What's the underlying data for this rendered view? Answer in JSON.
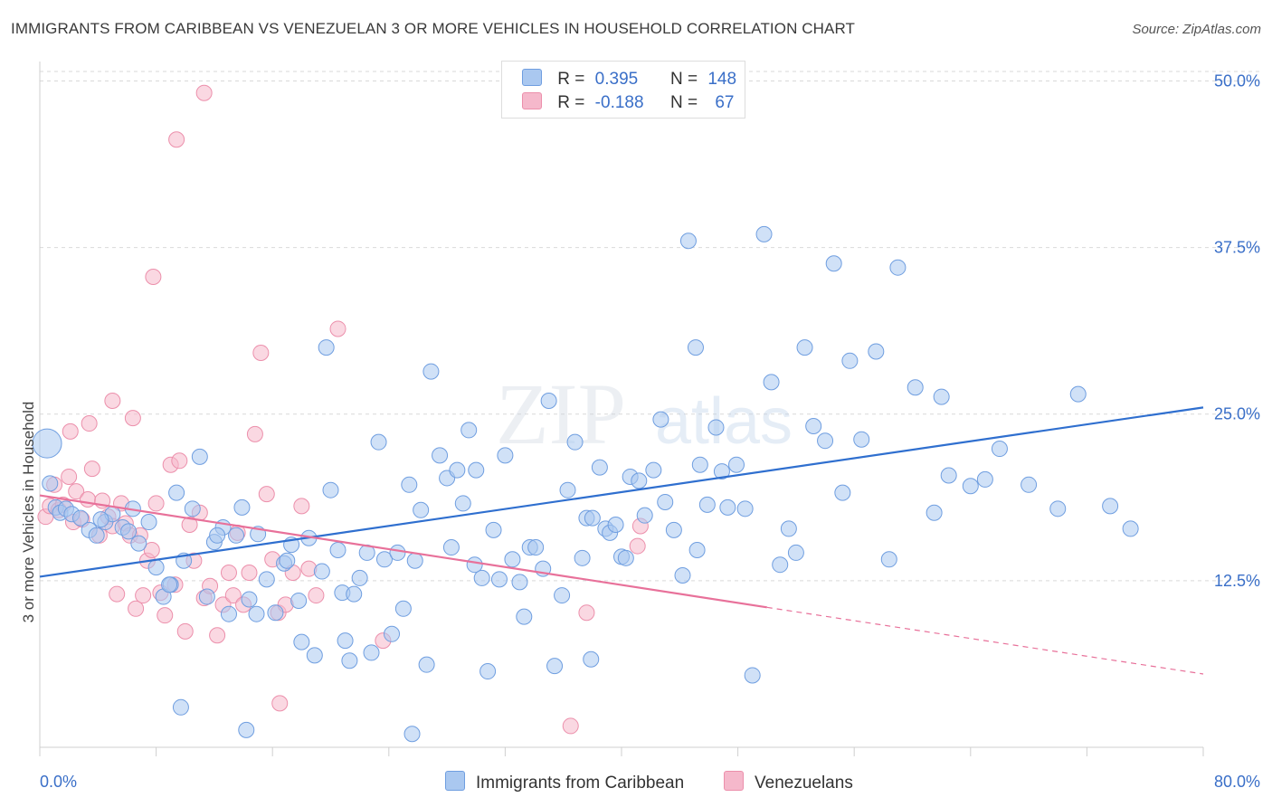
{
  "title": "IMMIGRANTS FROM CARIBBEAN VS VENEZUELAN 3 OR MORE VEHICLES IN HOUSEHOLD CORRELATION CHART",
  "source": "Source: ZipAtlas.com",
  "watermark": {
    "zip": "ZIP",
    "atlas": "atlas"
  },
  "legend_stats": [
    {
      "r_label": "R =",
      "r_value": "0.395",
      "n_label": "N =",
      "n_value": "148",
      "color": "#aac8f0"
    },
    {
      "r_label": "R =",
      "r_value": "-0.188",
      "n_label": "N =",
      "n_value": "67",
      "color": "#f5b8cb"
    }
  ],
  "bottom_legend": [
    {
      "label": "Immigrants from Caribbean",
      "color": "#aac8f0"
    },
    {
      "label": "Venezuelans",
      "color": "#f5b8cb"
    }
  ],
  "chart_data": {
    "type": "scatter",
    "title": "IMMIGRANTS FROM CARIBBEAN VS VENEZUELAN 3 OR MORE VEHICLES IN HOUSEHOLD CORRELATION CHART",
    "xlabel": "",
    "ylabel": "3 or more Vehicles in Household",
    "xlim": [
      0,
      80
    ],
    "ylim": [
      0,
      52
    ],
    "x_tick_labels": [
      "0.0%",
      "80.0%"
    ],
    "y_ticks": [
      12.5,
      25.0,
      37.5,
      50.0
    ],
    "y_tick_labels": [
      "12.5%",
      "25.0%",
      "37.5%",
      "50.0%"
    ],
    "grid": true,
    "legend_position": "top-center",
    "colors": {
      "blue_point": "#aac8f0",
      "blue_edge": "#6f9ee0",
      "blue_line": "#2f6fcf",
      "pink_point": "#f5b8cb",
      "pink_edge": "#ec8fab",
      "pink_line": "#e8719a"
    },
    "series": [
      {
        "name": "Immigrants from Caribbean",
        "trend": {
          "x": [
            0,
            80
          ],
          "y": [
            12.8,
            25.5
          ]
        },
        "points": [
          [
            0.5,
            22.8
          ],
          [
            0.7,
            19.8
          ],
          [
            1.1,
            18.0
          ],
          [
            1.4,
            17.6
          ],
          [
            1.8,
            17.9
          ],
          [
            2.2,
            17.5
          ],
          [
            2.8,
            17.2
          ],
          [
            3.4,
            16.3
          ],
          [
            3.9,
            15.9
          ],
          [
            4.5,
            16.9
          ],
          [
            5.0,
            17.5
          ],
          [
            5.7,
            16.5
          ],
          [
            6.1,
            16.2
          ],
          [
            6.8,
            15.3
          ],
          [
            7.5,
            16.9
          ],
          [
            8.0,
            13.5
          ],
          [
            8.5,
            11.3
          ],
          [
            9.0,
            12.2
          ],
          [
            9.4,
            19.1
          ],
          [
            9.9,
            14.0
          ],
          [
            10.5,
            17.9
          ],
          [
            11.0,
            21.8
          ],
          [
            11.5,
            11.3
          ],
          [
            12.0,
            15.4
          ],
          [
            12.6,
            16.5
          ],
          [
            13.0,
            10.0
          ],
          [
            13.5,
            15.9
          ],
          [
            13.9,
            18.0
          ],
          [
            14.4,
            11.1
          ],
          [
            15.0,
            16.0
          ],
          [
            15.6,
            12.6
          ],
          [
            16.2,
            10.1
          ],
          [
            16.8,
            13.8
          ],
          [
            17.3,
            15.2
          ],
          [
            17.8,
            11.0
          ],
          [
            18.0,
            7.9
          ],
          [
            18.5,
            15.7
          ],
          [
            18.9,
            6.9
          ],
          [
            19.4,
            13.2
          ],
          [
            19.7,
            30.0
          ],
          [
            20.0,
            19.3
          ],
          [
            20.5,
            14.8
          ],
          [
            20.8,
            11.6
          ],
          [
            21.3,
            6.5
          ],
          [
            21.6,
            11.5
          ],
          [
            22.0,
            12.7
          ],
          [
            22.5,
            14.6
          ],
          [
            22.8,
            7.1
          ],
          [
            23.3,
            22.9
          ],
          [
            23.7,
            14.1
          ],
          [
            24.2,
            8.5
          ],
          [
            24.6,
            14.6
          ],
          [
            25.0,
            10.4
          ],
          [
            25.4,
            19.7
          ],
          [
            25.8,
            14.0
          ],
          [
            26.2,
            17.8
          ],
          [
            26.6,
            6.2
          ],
          [
            26.9,
            28.2
          ],
          [
            27.5,
            21.9
          ],
          [
            28.0,
            20.2
          ],
          [
            28.3,
            15.0
          ],
          [
            28.7,
            20.8
          ],
          [
            29.1,
            18.3
          ],
          [
            29.5,
            23.8
          ],
          [
            30.0,
            20.8
          ],
          [
            30.4,
            12.7
          ],
          [
            30.8,
            5.7
          ],
          [
            31.2,
            16.3
          ],
          [
            31.6,
            12.6
          ],
          [
            32.0,
            21.9
          ],
          [
            32.5,
            14.1
          ],
          [
            33.0,
            12.4
          ],
          [
            33.3,
            9.8
          ],
          [
            33.7,
            15.0
          ],
          [
            34.1,
            15.0
          ],
          [
            34.6,
            13.4
          ],
          [
            35.0,
            26.0
          ],
          [
            35.4,
            6.1
          ],
          [
            35.9,
            11.4
          ],
          [
            36.3,
            19.3
          ],
          [
            36.8,
            22.9
          ],
          [
            37.3,
            14.2
          ],
          [
            37.6,
            17.2
          ],
          [
            38.0,
            17.2
          ],
          [
            38.5,
            21.0
          ],
          [
            38.9,
            16.4
          ],
          [
            39.2,
            16.1
          ],
          [
            39.6,
            16.7
          ],
          [
            40.0,
            14.3
          ],
          [
            40.3,
            14.2
          ],
          [
            40.6,
            20.3
          ],
          [
            41.2,
            20.0
          ],
          [
            41.6,
            17.4
          ],
          [
            42.2,
            20.8
          ],
          [
            42.7,
            24.6
          ],
          [
            43.0,
            18.4
          ],
          [
            43.6,
            16.3
          ],
          [
            44.2,
            12.9
          ],
          [
            44.6,
            38.0
          ],
          [
            45.1,
            30.0
          ],
          [
            45.4,
            21.2
          ],
          [
            45.9,
            18.2
          ],
          [
            46.5,
            24.0
          ],
          [
            46.9,
            20.7
          ],
          [
            47.3,
            18.0
          ],
          [
            47.9,
            21.2
          ],
          [
            48.5,
            17.9
          ],
          [
            49.0,
            5.4
          ],
          [
            49.8,
            38.5
          ],
          [
            50.3,
            27.4
          ],
          [
            50.9,
            13.7
          ],
          [
            51.5,
            16.4
          ],
          [
            52.0,
            14.6
          ],
          [
            52.6,
            30.0
          ],
          [
            53.2,
            24.1
          ],
          [
            54.0,
            23.0
          ],
          [
            54.6,
            36.3
          ],
          [
            55.2,
            19.1
          ],
          [
            55.7,
            29.0
          ],
          [
            56.5,
            23.1
          ],
          [
            57.5,
            29.7
          ],
          [
            58.4,
            14.1
          ],
          [
            59.0,
            36.0
          ],
          [
            60.2,
            27.0
          ],
          [
            61.5,
            17.6
          ],
          [
            62.0,
            26.3
          ],
          [
            62.5,
            20.4
          ],
          [
            64.0,
            19.6
          ],
          [
            65.0,
            20.1
          ],
          [
            66.0,
            22.4
          ],
          [
            68.0,
            19.7
          ],
          [
            70.0,
            17.9
          ],
          [
            71.4,
            26.5
          ],
          [
            73.6,
            18.1
          ],
          [
            75.0,
            16.4
          ],
          [
            4.2,
            17.1
          ],
          [
            6.4,
            17.9
          ],
          [
            8.9,
            12.2
          ],
          [
            12.2,
            15.9
          ],
          [
            14.9,
            10.0
          ],
          [
            17.0,
            14.0
          ],
          [
            21.0,
            8.0
          ],
          [
            25.6,
            1.0
          ],
          [
            29.9,
            13.7
          ],
          [
            37.9,
            6.6
          ],
          [
            45.2,
            14.8
          ],
          [
            9.7,
            3.0
          ],
          [
            14.2,
            1.3
          ]
        ]
      },
      {
        "name": "Venezuelans",
        "trend": {
          "x": [
            0,
            50
          ],
          "y": [
            18.9,
            10.5
          ]
        },
        "trend_dashed": {
          "x": [
            50,
            80
          ],
          "y": [
            10.5,
            5.5
          ]
        },
        "points": [
          [
            0.4,
            17.3
          ],
          [
            0.7,
            18.1
          ],
          [
            1.0,
            19.7
          ],
          [
            1.3,
            17.8
          ],
          [
            1.6,
            18.2
          ],
          [
            2.0,
            20.3
          ],
          [
            2.3,
            16.9
          ],
          [
            2.5,
            19.2
          ],
          [
            2.9,
            17.1
          ],
          [
            3.3,
            18.6
          ],
          [
            3.6,
            20.9
          ],
          [
            4.1,
            15.9
          ],
          [
            4.3,
            18.5
          ],
          [
            4.7,
            17.3
          ],
          [
            5.0,
            16.6
          ],
          [
            5.3,
            11.5
          ],
          [
            5.6,
            18.3
          ],
          [
            5.9,
            16.8
          ],
          [
            6.2,
            15.9
          ],
          [
            6.6,
            10.4
          ],
          [
            6.9,
            15.9
          ],
          [
            7.1,
            11.4
          ],
          [
            7.4,
            14.0
          ],
          [
            7.7,
            14.8
          ],
          [
            8.0,
            18.3
          ],
          [
            8.3,
            11.6
          ],
          [
            8.6,
            9.9
          ],
          [
            9.0,
            21.2
          ],
          [
            9.3,
            12.2
          ],
          [
            9.6,
            21.5
          ],
          [
            10.0,
            8.7
          ],
          [
            10.3,
            16.7
          ],
          [
            10.6,
            14.0
          ],
          [
            11.0,
            17.6
          ],
          [
            11.3,
            11.2
          ],
          [
            11.7,
            12.1
          ],
          [
            12.2,
            8.4
          ],
          [
            12.6,
            10.7
          ],
          [
            13.0,
            13.1
          ],
          [
            13.3,
            11.4
          ],
          [
            13.6,
            16.1
          ],
          [
            14.0,
            10.7
          ],
          [
            14.4,
            13.1
          ],
          [
            14.8,
            23.5
          ],
          [
            15.2,
            29.6
          ],
          [
            15.6,
            19.0
          ],
          [
            16.0,
            14.1
          ],
          [
            16.4,
            10.1
          ],
          [
            16.9,
            10.7
          ],
          [
            17.4,
            13.1
          ],
          [
            18.0,
            18.1
          ],
          [
            18.5,
            13.4
          ],
          [
            19.0,
            11.4
          ],
          [
            2.1,
            23.7
          ],
          [
            3.4,
            24.3
          ],
          [
            5.0,
            26.0
          ],
          [
            6.4,
            24.7
          ],
          [
            7.8,
            35.3
          ],
          [
            9.4,
            45.6
          ],
          [
            11.3,
            49.1
          ],
          [
            16.5,
            3.3
          ],
          [
            20.5,
            31.4
          ],
          [
            23.6,
            8.0
          ],
          [
            36.5,
            1.6
          ],
          [
            37.6,
            10.1
          ],
          [
            41.1,
            15.1
          ],
          [
            41.3,
            16.6
          ]
        ]
      }
    ]
  }
}
